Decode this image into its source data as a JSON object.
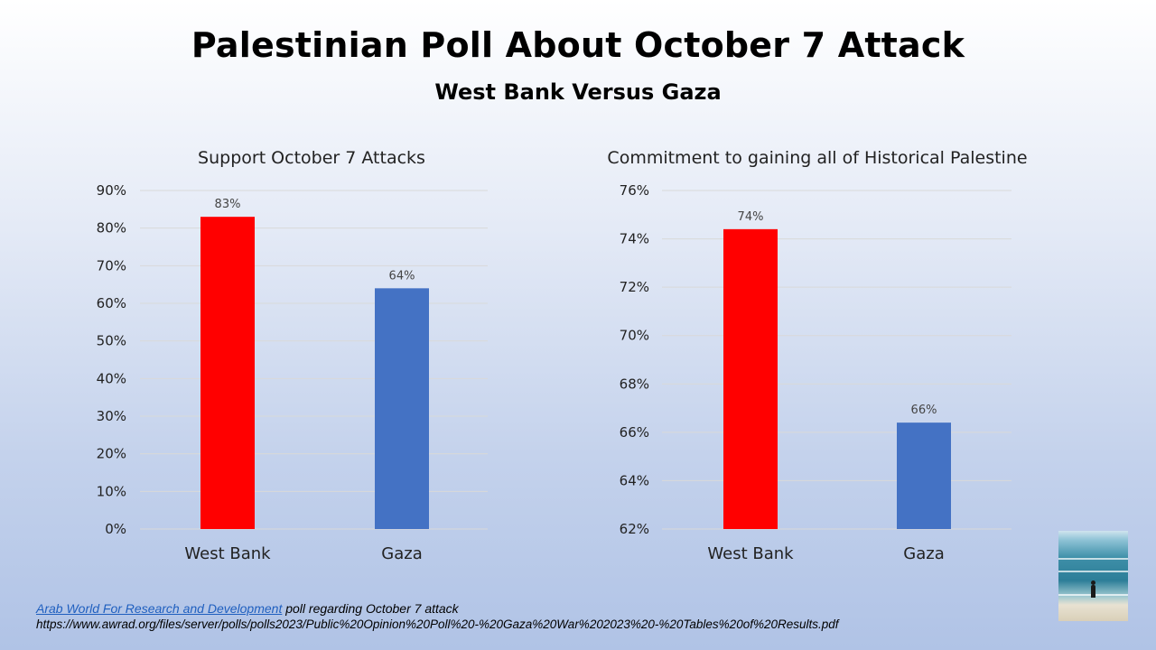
{
  "slide": {
    "title": "Palestinian Poll About October 7 Attack",
    "subtitle": "West Bank Versus Gaza"
  },
  "chart_data": [
    {
      "type": "bar",
      "title": "Support October 7 Attacks",
      "categories": [
        "West Bank",
        "Gaza"
      ],
      "values": [
        83,
        64
      ],
      "value_labels": [
        "83%",
        "64%"
      ],
      "ylim": [
        0,
        90
      ],
      "yticks": [
        0,
        10,
        20,
        30,
        40,
        50,
        60,
        70,
        80,
        90
      ],
      "ytick_labels": [
        "0%",
        "10%",
        "20%",
        "30%",
        "40%",
        "50%",
        "60%",
        "70%",
        "80%",
        "90%"
      ],
      "colors": [
        "#ff0000",
        "#4472c4"
      ],
      "grid": true
    },
    {
      "type": "bar",
      "title": "Commitment to gaining all of Historical Palestine",
      "categories": [
        "West Bank",
        "Gaza"
      ],
      "values": [
        74.4,
        66.4
      ],
      "value_labels": [
        "74%",
        "66%"
      ],
      "ylim": [
        62,
        76
      ],
      "yticks": [
        62,
        64,
        66,
        68,
        70,
        72,
        74,
        76
      ],
      "ytick_labels": [
        "62%",
        "64%",
        "66%",
        "68%",
        "70%",
        "72%",
        "74%",
        "76%"
      ],
      "colors": [
        "#ff0000",
        "#4472c4"
      ],
      "grid": true
    }
  ],
  "source": {
    "link_text": "Arab World For Research and Development",
    "text": " poll regarding October 7 attack",
    "url": "https://www.awrad.org/files/server/polls/polls2023/Public%20Opinion%20Poll%20-%20Gaza%20War%202023%20-%20Tables%20of%20Results.pdf"
  },
  "image": {
    "icon": "beach-photo"
  }
}
